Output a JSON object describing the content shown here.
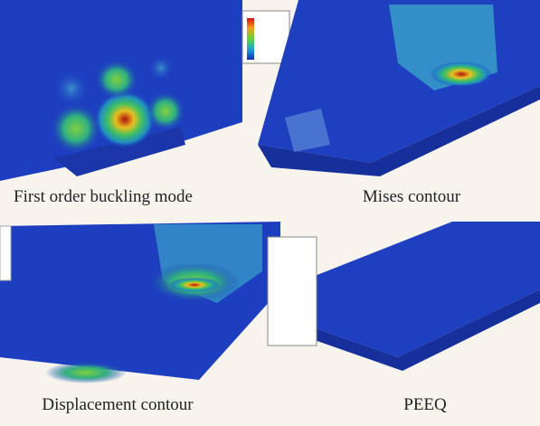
{
  "panels": [
    {
      "caption": "First order buckling mode"
    },
    {
      "caption": "Mises contour"
    },
    {
      "caption": "Displacement contour"
    },
    {
      "caption": "PEEQ"
    }
  ]
}
